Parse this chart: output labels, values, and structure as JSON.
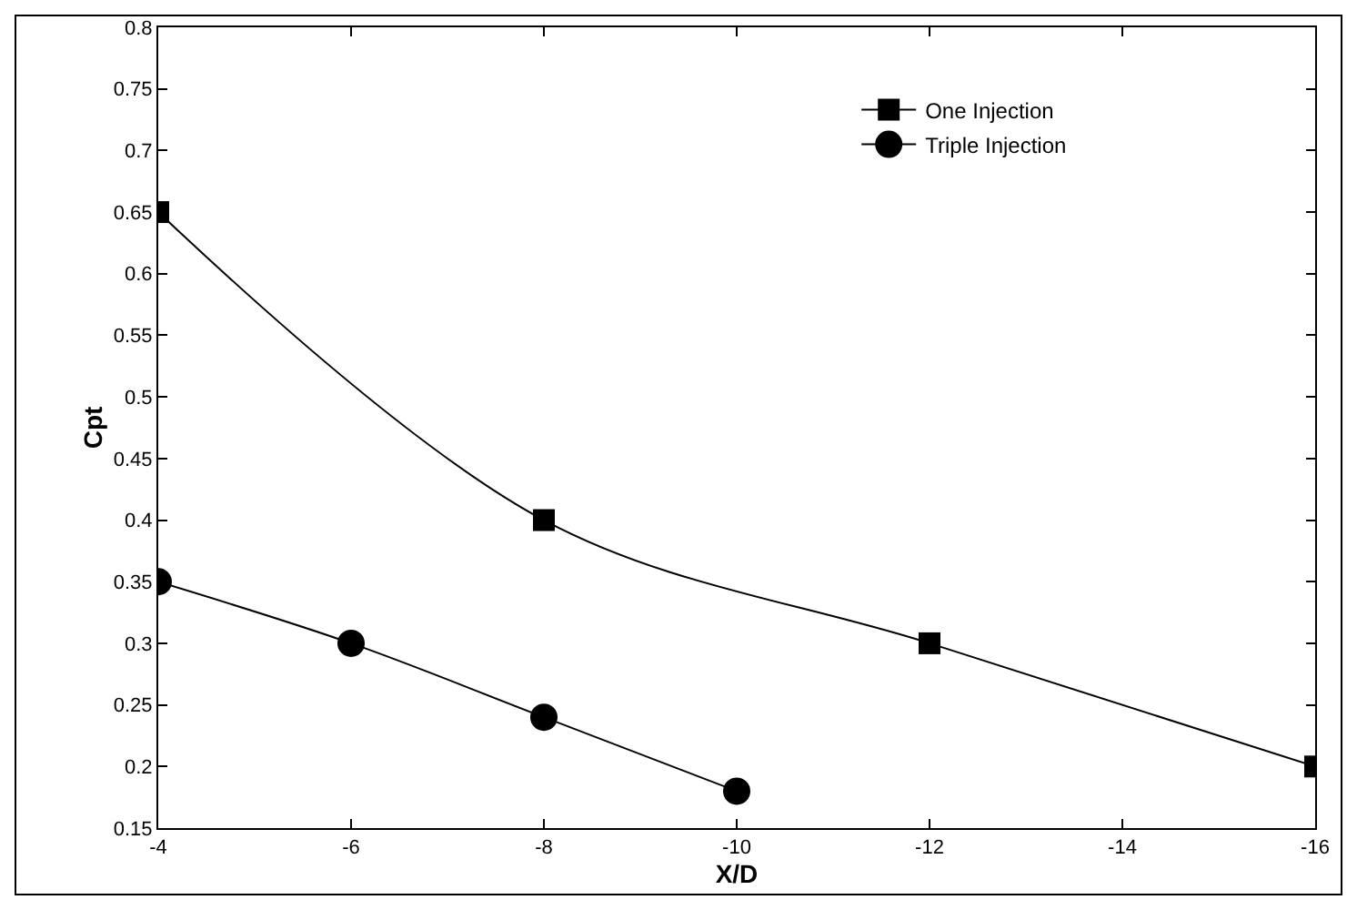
{
  "chart_data": {
    "type": "line",
    "xlabel": "X/D",
    "ylabel": "Cpt",
    "xlim": [
      -4,
      -16
    ],
    "xticks": [
      -4,
      -6,
      -8,
      -10,
      -12,
      -14,
      -16
    ],
    "ylim": [
      0.15,
      0.8
    ],
    "yticks": [
      0.15,
      0.2,
      0.25,
      0.3,
      0.35,
      0.4,
      0.45,
      0.5,
      0.55,
      0.6,
      0.65,
      0.7,
      0.75,
      0.8
    ],
    "grid": false,
    "legend": "top right",
    "line_style": "solid",
    "series": [
      {
        "name": "One Injection",
        "color": "#000000",
        "marker": "square",
        "x": [
          -4,
          -8,
          -12,
          -16
        ],
        "values": [
          0.65,
          0.4,
          0.3,
          0.2
        ]
      },
      {
        "name": "Triple Injection",
        "color": "#000000",
        "marker": "circle",
        "x": [
          -4,
          -6,
          -8,
          -10
        ],
        "values": [
          0.35,
          0.3,
          0.24,
          0.18
        ]
      }
    ]
  }
}
